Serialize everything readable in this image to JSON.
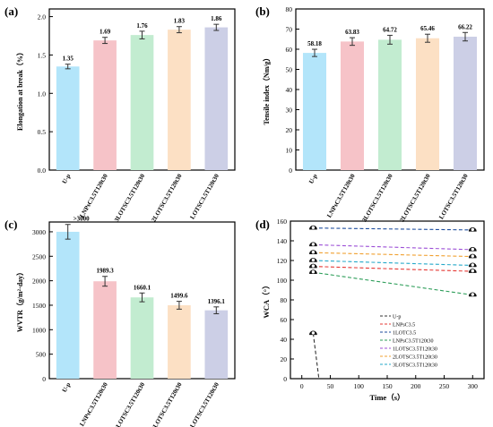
{
  "chart_data": [
    {
      "panel": "(a)",
      "type": "bar",
      "ylabel": "Elongation at break（%）",
      "categories": [
        "U-p",
        "LNPsC3.5T120t30",
        "3LOTSC3.5T120t30",
        "2LOTSC3.5T120t30",
        "LOTSC3.5T120t30"
      ],
      "values": [
        1.35,
        1.69,
        1.76,
        1.83,
        1.86
      ],
      "labels": [
        "1.35",
        "1.69",
        "1.76",
        "1.83",
        "1.86"
      ],
      "errors": [
        0.03,
        0.04,
        0.05,
        0.04,
        0.04
      ],
      "ylim": [
        0,
        2.1
      ],
      "yticks": [
        "0.0",
        "0.5",
        "1.0",
        "1.5",
        "2.0"
      ],
      "ytick_values": [
        0,
        0.5,
        1.0,
        1.5,
        2.0
      ],
      "colors": [
        "#b3e5fa",
        "#f6c3c8",
        "#c2ecd0",
        "#fce0c4",
        "#cccfe6"
      ]
    },
    {
      "panel": "(b)",
      "type": "bar",
      "ylabel": "Tensile index（Nm/g）",
      "categories": [
        "U-p",
        "LNPsC3.5T120t30",
        "3LOTSC3.5T120t30",
        "2LOTSC3.5T120t30",
        "LOTSC3.5T120t30"
      ],
      "values": [
        58.18,
        63.83,
        64.72,
        65.46,
        66.22
      ],
      "labels": [
        "58.18",
        "63.83",
        "64.72",
        "65.46",
        "66.22"
      ],
      "errors": [
        1.8,
        1.9,
        2.2,
        2.0,
        2.1
      ],
      "ylim": [
        0,
        80
      ],
      "yticks": [
        "0",
        "10",
        "20",
        "30",
        "40",
        "50",
        "60",
        "70",
        "80"
      ],
      "ytick_values": [
        0,
        10,
        20,
        30,
        40,
        50,
        60,
        70,
        80
      ],
      "colors": [
        "#b3e5fa",
        "#f6c3c8",
        "#c2ecd0",
        "#fce0c4",
        "#cccfe6"
      ]
    },
    {
      "panel": "(c)",
      "type": "bar",
      "ylabel": "WVTR（g/m²·day）",
      "categories": [
        "U-p",
        "LNPsC3.5T120t30",
        "3LOTSC3.5T120t30",
        "2LOTSC3.5T120t30",
        "LOTSC3.5T120t30"
      ],
      "values": [
        3000,
        1989.3,
        1660.1,
        1499.6,
        1396.1
      ],
      "labels": [
        ">3000",
        "1989.3",
        "1660.1",
        "1499.6",
        "1396.1"
      ],
      "errors": [
        150,
        100,
        90,
        80,
        70
      ],
      "ylim": [
        0,
        3200
      ],
      "yticks": [
        "0",
        "500",
        "1000",
        "1500",
        "2000",
        "2500",
        "3000"
      ],
      "ytick_values": [
        0,
        500,
        1000,
        1500,
        2000,
        2500,
        3000
      ],
      "colors": [
        "#b3e5fa",
        "#f6c3c8",
        "#c2ecd0",
        "#fce0c4",
        "#cccfe6"
      ]
    },
    {
      "panel": "(d)",
      "type": "line",
      "xlabel": "Time（s）",
      "ylabel": "WCA（°）",
      "xlim": [
        -20,
        320
      ],
      "ylim": [
        0,
        160
      ],
      "xticks": [
        "0",
        "50",
        "100",
        "150",
        "200",
        "250",
        "300"
      ],
      "xtick_values": [
        0,
        50,
        100,
        150,
        200,
        250,
        300
      ],
      "yticks": [
        "0",
        "20",
        "40",
        "60",
        "80",
        "100",
        "120",
        "140",
        "160"
      ],
      "ytick_values": [
        0,
        20,
        40,
        60,
        80,
        100,
        120,
        140,
        160
      ],
      "series": [
        {
          "name": "U-p",
          "color": "#333333",
          "x": [
            20,
            30
          ],
          "y": [
            46,
            0
          ]
        },
        {
          "name": "LNPsC3.5",
          "color": "#e53935",
          "x": [
            20,
            300
          ],
          "y": [
            114,
            109
          ]
        },
        {
          "name": "1LOTC3.5",
          "color": "#1f4e9e",
          "x": [
            20,
            300
          ],
          "y": [
            153,
            151
          ]
        },
        {
          "name": "LNPsC3.5T120t30",
          "color": "#2e9e5a",
          "x": [
            20,
            300
          ],
          "y": [
            108,
            85
          ]
        },
        {
          "name": "1LOTSC3.5T120t30",
          "color": "#9c4fd6",
          "x": [
            20,
            300
          ],
          "y": [
            136,
            131
          ]
        },
        {
          "name": "2LOTSC3.5T120t30",
          "color": "#f0a030",
          "x": [
            20,
            300
          ],
          "y": [
            128,
            124
          ]
        },
        {
          "name": "3LOTSC3.5T120t30",
          "color": "#26a9c9",
          "x": [
            20,
            300
          ],
          "y": [
            120,
            115
          ]
        }
      ]
    }
  ]
}
